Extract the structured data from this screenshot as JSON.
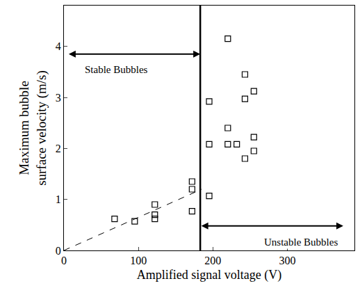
{
  "chart_data": {
    "type": "scatter",
    "x_label": "Amplified signal voltage (V)",
    "y_label": "Maximum bubble surface velocity (m/s)",
    "x": [
      68,
      95,
      122,
      122,
      122,
      172,
      172,
      172,
      195,
      195,
      195,
      220,
      220,
      220,
      232,
      243,
      243,
      243,
      255,
      255,
      255
    ],
    "values": [
      0.62,
      0.57,
      0.9,
      0.7,
      0.62,
      1.35,
      1.2,
      0.77,
      1.07,
      2.08,
      2.92,
      4.15,
      2.4,
      2.08,
      2.08,
      3.45,
      2.97,
      1.8,
      3.12,
      2.22,
      1.95
    ],
    "color": "#000000",
    "marker": "square-open",
    "xlim": [
      0,
      390
    ],
    "ylim": [
      0,
      4.8
    ],
    "xticks": [
      0,
      100,
      200,
      300
    ],
    "yticks": [
      0,
      1,
      2,
      3,
      4
    ],
    "grid": false,
    "threshold_x": 183,
    "fit_line": {
      "x": [
        0,
        185
      ],
      "y": [
        0,
        1.2
      ],
      "line_style": "dash"
    },
    "annotations": [
      {
        "text": "Stable Bubbles",
        "x": 70,
        "y": 3.55,
        "arrow_x": [
          5,
          183
        ],
        "arrow_y": 3.85
      },
      {
        "text": "Unstable Bubbles",
        "x": 318,
        "y": 0.17,
        "arrow_x": [
          183,
          375
        ],
        "arrow_y": 0.48
      }
    ]
  }
}
